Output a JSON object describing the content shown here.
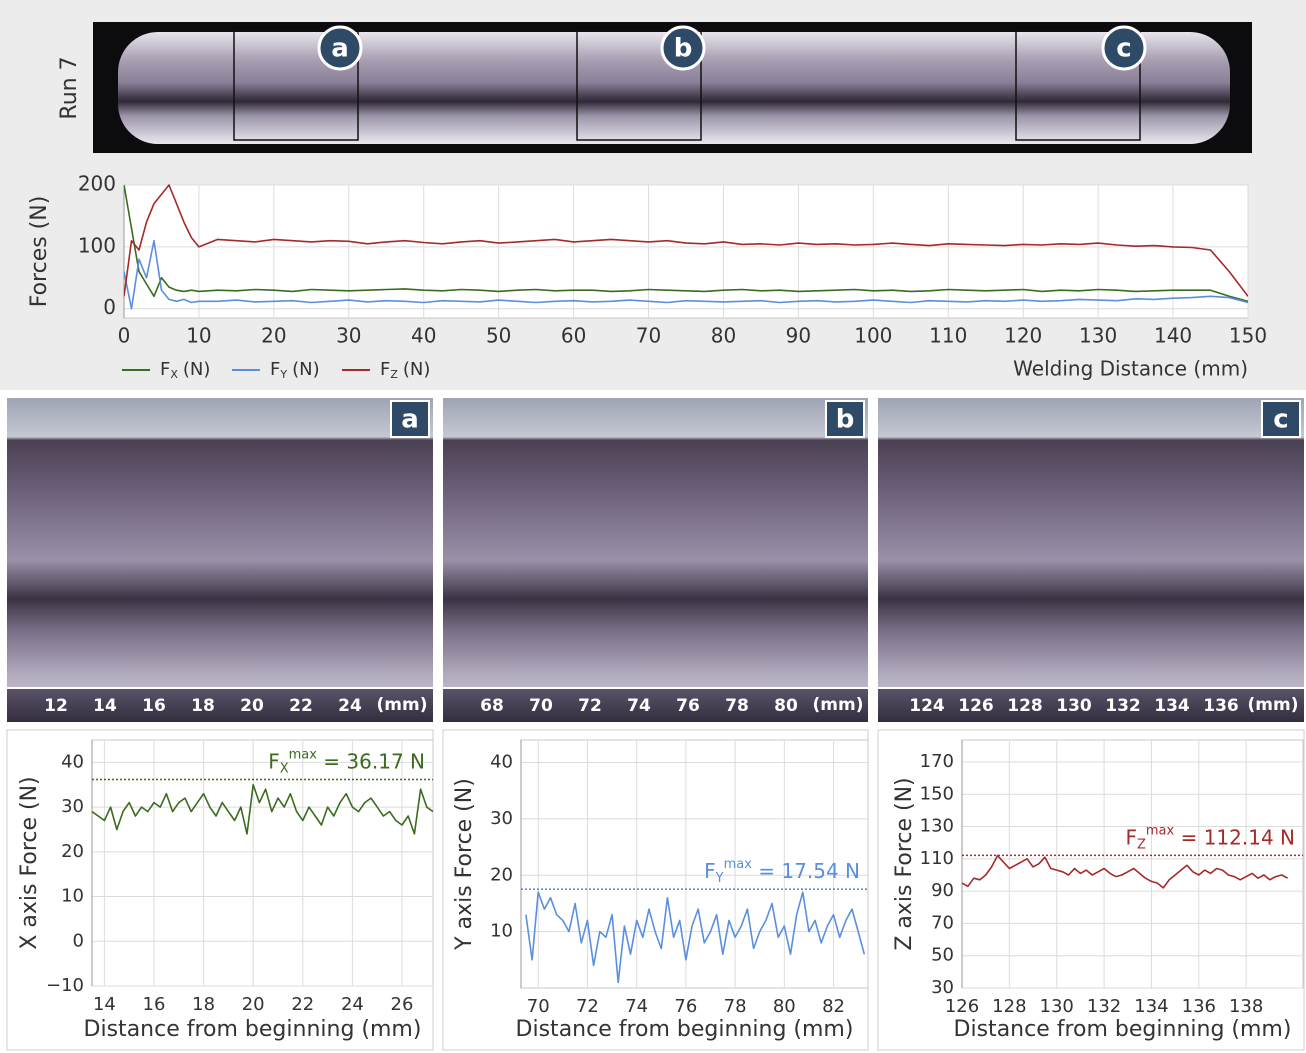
{
  "strip": {
    "label": "Run 7",
    "markers": [
      "a",
      "b",
      "c"
    ]
  },
  "photos": [
    {
      "tag": "a",
      "scale": [
        12,
        14,
        16,
        18,
        20,
        22,
        24
      ],
      "unit": "(mm)"
    },
    {
      "tag": "b",
      "scale": [
        68,
        70,
        72,
        74,
        76,
        78,
        80
      ],
      "unit": "(mm)"
    },
    {
      "tag": "c",
      "scale": [
        124,
        126,
        128,
        130,
        132,
        134,
        136
      ],
      "unit": "(mm)"
    }
  ],
  "chart_data": [
    {
      "type": "line",
      "ylabel": "Forces (N)",
      "xlabel": "Welding Distance (mm)",
      "x": [
        0,
        1,
        2,
        3,
        4,
        5,
        6,
        7,
        8,
        9,
        10,
        12.5,
        15,
        17.5,
        20,
        22.5,
        25,
        27.5,
        30,
        32.5,
        35,
        37.5,
        40,
        42.5,
        45,
        47.5,
        50,
        52.5,
        55,
        57.5,
        60,
        62.5,
        65,
        67.5,
        70,
        72.5,
        75,
        77.5,
        80,
        82.5,
        85,
        87.5,
        90,
        92.5,
        95,
        97.5,
        100,
        102.5,
        105,
        107.5,
        110,
        112.5,
        115,
        117.5,
        120,
        122.5,
        125,
        127.5,
        130,
        132.5,
        135,
        137.5,
        140,
        142.5,
        145,
        147.5,
        150
      ],
      "series": [
        {
          "name": "F",
          "name_sub": "X",
          "name_unit": "(N)",
          "color": "#3b6b1e",
          "values": [
            200,
            130,
            60,
            40,
            20,
            50,
            35,
            30,
            28,
            30,
            28,
            30,
            29,
            31,
            30,
            28,
            31,
            30,
            29,
            30,
            31,
            32,
            30,
            29,
            31,
            30,
            28,
            30,
            31,
            29,
            30,
            30,
            28,
            29,
            31,
            30,
            29,
            28,
            30,
            31,
            29,
            30,
            28,
            29,
            30,
            31,
            29,
            30,
            28,
            29,
            31,
            30,
            29,
            30,
            31,
            28,
            30,
            29,
            31,
            30,
            28,
            29,
            30,
            30,
            30,
            20,
            12
          ]
        },
        {
          "name": "F",
          "name_sub": "Y",
          "name_unit": "(N)",
          "color": "#5a8fe0",
          "values": [
            60,
            0,
            80,
            50,
            110,
            30,
            15,
            12,
            15,
            10,
            12,
            12,
            14,
            11,
            12,
            13,
            10,
            12,
            14,
            11,
            13,
            12,
            10,
            13,
            12,
            11,
            14,
            12,
            10,
            12,
            13,
            11,
            12,
            14,
            12,
            10,
            13,
            12,
            11,
            12,
            13,
            10,
            12,
            13,
            11,
            12,
            14,
            12,
            10,
            13,
            12,
            11,
            13,
            12,
            14,
            12,
            13,
            15,
            14,
            13,
            16,
            15,
            17,
            18,
            20,
            18,
            10
          ]
        },
        {
          "name": "F",
          "name_sub": "Z",
          "name_unit": "(N)",
          "color": "#a52a2a",
          "values": [
            20,
            110,
            95,
            140,
            170,
            185,
            200,
            170,
            140,
            115,
            100,
            112,
            110,
            108,
            112,
            110,
            108,
            110,
            109,
            105,
            108,
            110,
            107,
            105,
            108,
            110,
            106,
            108,
            110,
            112,
            108,
            110,
            112,
            110,
            108,
            110,
            106,
            105,
            108,
            104,
            105,
            103,
            106,
            104,
            105,
            103,
            104,
            106,
            104,
            102,
            105,
            104,
            103,
            102,
            104,
            103,
            105,
            104,
            106,
            103,
            101,
            102,
            100,
            99,
            95,
            60,
            20
          ]
        }
      ],
      "xlim": [
        0,
        150
      ],
      "xticks": [
        0,
        10,
        20,
        30,
        40,
        50,
        60,
        70,
        80,
        90,
        100,
        110,
        120,
        130,
        140,
        150
      ],
      "ylim": [
        -15,
        200
      ],
      "yticks": [
        0,
        100,
        200
      ],
      "grid": true
    },
    {
      "type": "line",
      "ylabel": "X axis Force (N)",
      "xlabel": "Distance from beginning (mm)",
      "color": "#3b6b1e",
      "x": [
        13.5,
        13.75,
        14,
        14.25,
        14.5,
        14.75,
        15,
        15.25,
        15.5,
        15.75,
        16,
        16.25,
        16.5,
        16.75,
        17,
        17.25,
        17.5,
        17.75,
        18,
        18.25,
        18.5,
        18.75,
        19,
        19.25,
        19.5,
        19.75,
        20,
        20.25,
        20.5,
        20.75,
        21,
        21.25,
        21.5,
        21.75,
        22,
        22.25,
        22.5,
        22.75,
        23,
        23.25,
        23.5,
        23.75,
        24,
        24.25,
        24.5,
        24.75,
        25,
        25.25,
        25.5,
        25.75,
        26,
        26.25,
        26.5,
        26.75,
        27,
        27.25
      ],
      "values": [
        29,
        28,
        27,
        30,
        25,
        29,
        31,
        28,
        30,
        29,
        31,
        30,
        33,
        29,
        31,
        32,
        29,
        31,
        33,
        30,
        28,
        31,
        29,
        27,
        30,
        24,
        35,
        31,
        34,
        29,
        32,
        30,
        33,
        29,
        27,
        30,
        28,
        26,
        30,
        28,
        31,
        33,
        30,
        29,
        31,
        32,
        30,
        28,
        29,
        27,
        26,
        28,
        24,
        34,
        30,
        29
      ],
      "xlim": [
        13.5,
        27.25
      ],
      "xticks": [
        14,
        16,
        18,
        20,
        22,
        24,
        26
      ],
      "ylim": [
        -10,
        45
      ],
      "yticks": [
        {
          "value": -10,
          "label": "−10"
        },
        0,
        10,
        20,
        30,
        40
      ],
      "grid": true,
      "max_line": {
        "value": 36.17,
        "text": "F",
        "sub": "X",
        "sup": "max",
        "label": " = 36.17 N"
      }
    },
    {
      "type": "line",
      "ylabel": "Y axis Force (N)",
      "xlabel": "Distance from beginning (mm)",
      "color": "#5a8fe0",
      "x": [
        69.5,
        69.75,
        70,
        70.25,
        70.5,
        70.75,
        71,
        71.25,
        71.5,
        71.75,
        72,
        72.25,
        72.5,
        72.75,
        73,
        73.25,
        73.5,
        73.75,
        74,
        74.25,
        74.5,
        74.75,
        75,
        75.25,
        75.5,
        75.75,
        76,
        76.25,
        76.5,
        76.75,
        77,
        77.25,
        77.5,
        77.75,
        78,
        78.25,
        78.5,
        78.75,
        79,
        79.25,
        79.5,
        79.75,
        80,
        80.25,
        80.5,
        80.75,
        81,
        81.25,
        81.5,
        81.75,
        82,
        82.25,
        82.5,
        82.75,
        83,
        83.25
      ],
      "values": [
        13,
        5,
        17,
        14,
        16,
        13,
        12,
        10,
        15,
        8,
        12,
        4,
        10,
        9,
        13,
        1,
        11,
        6,
        12,
        9,
        14,
        10,
        7,
        16,
        9,
        12,
        5,
        11,
        14,
        8,
        10,
        13,
        6,
        12,
        9,
        11,
        14,
        7,
        10,
        12,
        15,
        9,
        11,
        6,
        13,
        17,
        10,
        12,
        8,
        11,
        13,
        9,
        12,
        14,
        10,
        6
      ],
      "xlim": [
        69.3,
        83.4
      ],
      "xticks": [
        70,
        72,
        74,
        76,
        78,
        80,
        82
      ],
      "ylim": [
        0,
        44
      ],
      "yticks": [
        10,
        20,
        30,
        40
      ],
      "grid": true,
      "max_line": {
        "value": 17.54,
        "text": "F",
        "sub": "Y",
        "sup": "max",
        "label": " = 17.54 N"
      }
    },
    {
      "type": "line",
      "ylabel": "Z axis Force (N)",
      "xlabel": "Distance from beginning (mm)",
      "color": "#a52a2a",
      "x": [
        126,
        126.25,
        126.5,
        126.75,
        127,
        127.25,
        127.5,
        127.75,
        128,
        128.25,
        128.5,
        128.75,
        129,
        129.25,
        129.5,
        129.75,
        130,
        130.25,
        130.5,
        130.75,
        131,
        131.25,
        131.5,
        131.75,
        132,
        132.25,
        132.5,
        132.75,
        133,
        133.25,
        133.5,
        133.75,
        134,
        134.25,
        134.5,
        134.75,
        135,
        135.25,
        135.5,
        135.75,
        136,
        136.25,
        136.5,
        136.75,
        137,
        137.25,
        137.5,
        137.75,
        138,
        138.25,
        138.5,
        138.75,
        139,
        139.25,
        139.5,
        139.75
      ],
      "values": [
        95,
        93,
        98,
        97,
        100,
        105,
        112,
        108,
        104,
        106,
        108,
        110,
        105,
        107,
        111,
        104,
        103,
        102,
        100,
        104,
        101,
        103,
        100,
        102,
        104,
        101,
        99,
        100,
        102,
        104,
        101,
        98,
        96,
        95,
        92,
        97,
        100,
        103,
        106,
        102,
        100,
        103,
        101,
        104,
        103,
        100,
        99,
        97,
        99,
        101,
        98,
        100,
        97,
        99,
        100,
        98
      ],
      "xlim": [
        126,
        140.4
      ],
      "xticks": [
        126,
        128,
        130,
        132,
        134,
        136,
        138
      ],
      "ylim": [
        30,
        183.6
      ],
      "yticks": [
        30,
        50,
        70,
        90,
        110,
        130,
        150,
        170
      ],
      "grid": true,
      "max_line": {
        "value": 112.14,
        "text": "F",
        "sub": "Z",
        "sup": "max",
        "label": " = 112.14 N"
      }
    }
  ]
}
